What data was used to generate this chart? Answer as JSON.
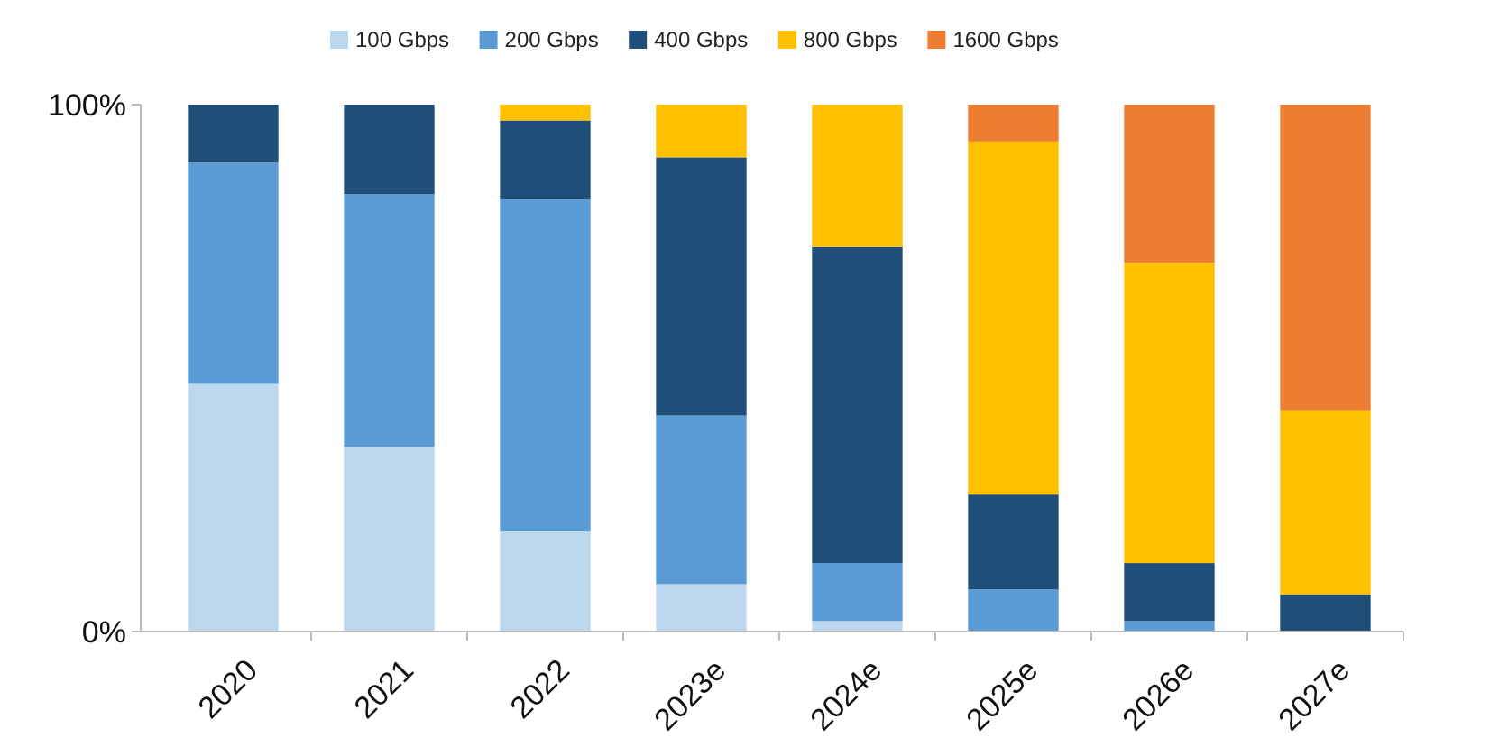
{
  "chart_data": {
    "type": "bar",
    "stacked": true,
    "categories": [
      "2020",
      "2021",
      "2022",
      "2023e",
      "2024e",
      "2025e",
      "2026e",
      "2027e"
    ],
    "series": [
      {
        "name": "100 Gbps",
        "color": "#bdd7ee",
        "values": [
          47,
          35,
          19,
          9,
          2,
          0,
          0,
          0
        ]
      },
      {
        "name": "200 Gbps",
        "color": "#5b9bd5",
        "values": [
          42,
          48,
          63,
          32,
          11,
          8,
          2,
          0
        ]
      },
      {
        "name": "400 Gbps",
        "color": "#1f4e79",
        "values": [
          11,
          17,
          15,
          49,
          60,
          18,
          11,
          7
        ]
      },
      {
        "name": "800 Gbps",
        "color": "#ffc000",
        "values": [
          0,
          0,
          3,
          10,
          27,
          67,
          57,
          35
        ]
      },
      {
        "name": "1600 Gbps",
        "color": "#ed7d31",
        "values": [
          0,
          0,
          0,
          0,
          0,
          7,
          30,
          58
        ]
      }
    ],
    "ylim": [
      0,
      100
    ],
    "yticks": [
      {
        "value": 0,
        "label": "0%"
      },
      {
        "value": 100,
        "label": "100%"
      }
    ],
    "grid": false,
    "legend": "top"
  }
}
